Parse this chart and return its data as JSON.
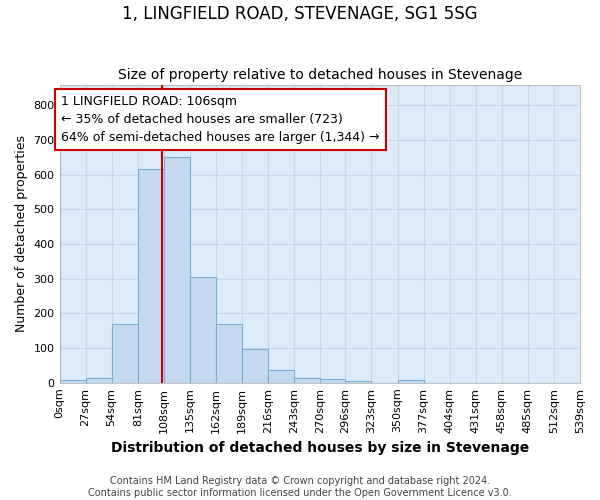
{
  "title": "1, LINGFIELD ROAD, STEVENAGE, SG1 5SG",
  "subtitle": "Size of property relative to detached houses in Stevenage",
  "xlabel": "Distribution of detached houses by size in Stevenage",
  "ylabel": "Number of detached properties",
  "footer_line1": "Contains HM Land Registry data © Crown copyright and database right 2024.",
  "footer_line2": "Contains public sector information licensed under the Open Government Licence v3.0.",
  "bin_edges": [
    0,
    27,
    54,
    81,
    108,
    135,
    162,
    189,
    216,
    243,
    270,
    296,
    323,
    350,
    377,
    404,
    431,
    458,
    485,
    512,
    539
  ],
  "bar_heights": [
    8,
    13,
    170,
    617,
    650,
    305,
    170,
    98,
    37,
    13,
    12,
    5,
    0,
    7,
    0,
    0,
    0,
    0,
    0,
    0
  ],
  "bar_color": "#c5d8f0",
  "bar_edge_color": "#7bafd4",
  "grid_color": "#c8d8e8",
  "background_color": "#ddeaf7",
  "vline_x": 106,
  "vline_color": "#cc0000",
  "annotation_text": "1 LINGFIELD ROAD: 106sqm\n← 35% of detached houses are smaller (723)\n64% of semi-detached houses are larger (1,344) →",
  "annotation_box_color": "#cc0000",
  "ylim": [
    0,
    860
  ],
  "yticks": [
    0,
    100,
    200,
    300,
    400,
    500,
    600,
    700,
    800
  ],
  "tick_label_fontsize": 8,
  "title_fontsize": 12,
  "subtitle_fontsize": 10,
  "xlabel_fontsize": 10,
  "ylabel_fontsize": 9,
  "annotation_fontsize": 9,
  "footer_fontsize": 7
}
